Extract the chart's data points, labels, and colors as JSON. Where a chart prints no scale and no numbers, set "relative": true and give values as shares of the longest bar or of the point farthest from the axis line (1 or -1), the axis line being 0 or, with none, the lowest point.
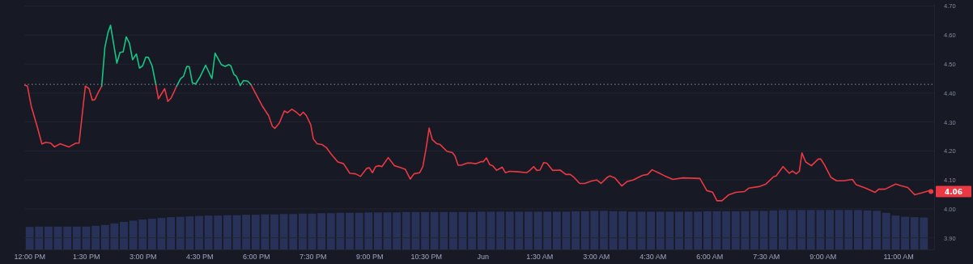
{
  "chart_data": [
    {
      "type": "line",
      "xlim": [
        "--05-31T11:52",
        "--06-01T11:57"
      ],
      "ylim": [
        3.86,
        4.71
      ],
      "xticks": [
        {
          "value": "--05-31T12:00",
          "label": "12:00 PM"
        },
        {
          "value": "--05-31T13:30",
          "label": "1:30 PM"
        },
        {
          "value": "--05-31T15:00",
          "label": "3:00 PM"
        },
        {
          "value": "--05-31T16:30",
          "label": "4:30 PM"
        },
        {
          "value": "--05-31T18:00",
          "label": "6:00 PM"
        },
        {
          "value": "--05-31T19:30",
          "label": "7:30 PM"
        },
        {
          "value": "--05-31T21:00",
          "label": "9:00 PM"
        },
        {
          "value": "--05-31T22:30",
          "label": "10:30 PM"
        },
        {
          "value": "--06-01T00:00",
          "label": "Jun"
        },
        {
          "value": "--06-01T01:30",
          "label": "1:30 AM"
        },
        {
          "value": "--06-01T03:00",
          "label": "3:00 AM"
        },
        {
          "value": "--06-01T04:30",
          "label": "4:30 AM"
        },
        {
          "value": "--06-01T06:00",
          "label": "6:00 AM"
        },
        {
          "value": "--06-01T07:30",
          "label": "7:30 AM"
        },
        {
          "value": "--06-01T09:00",
          "label": "9:00 AM"
        },
        {
          "value": "--06-01T11:00",
          "label": "11:00 AM"
        }
      ],
      "yticks": [
        {
          "value": 3.9,
          "label": "3.90"
        },
        {
          "value": 4.0,
          "label": "4.00"
        },
        {
          "value": 4.1,
          "label": "4.10"
        },
        {
          "value": 4.2,
          "label": "4.20"
        },
        {
          "value": 4.3,
          "label": "4.30"
        },
        {
          "value": 4.4,
          "label": "4.40"
        },
        {
          "value": 4.5,
          "label": "4.50"
        },
        {
          "value": 4.6,
          "label": "4.60"
        },
        {
          "value": 4.7,
          "label": "4.70"
        }
      ],
      "grid": "y",
      "marker": "none",
      "line_style": "solid",
      "ref_lines": [
        {
          "axis": "y",
          "value": 4.43,
          "line_style": "dotted",
          "color": "#8a8f9c"
        }
      ],
      "annotations": [
        {
          "text": "4.06",
          "x": "--06-01T11:52",
          "y": 4.06
        }
      ],
      "series": [
        {
          "color": "#ea3943",
          "x": [
            "--05-31T11:53",
            "--05-31T11:57",
            "--05-31T12:03",
            "--05-31T12:13",
            "--05-31T12:20",
            "--05-31T12:26",
            "--05-31T12:34",
            "--05-31T12:40",
            "--05-31T12:49",
            "--05-31T12:55",
            "--05-31T13:03",
            "--05-31T13:14",
            "--05-31T13:19",
            "--05-31T13:29",
            "--05-31T13:35",
            "--05-31T13:40",
            "--05-31T13:44",
            "--05-31T13:49",
            "--05-31T13:55",
            "--05-31T14:00",
            "--05-31T14:05",
            "--05-31T14:09",
            "--05-31T14:19",
            "--05-31T14:24",
            "--05-31T14:29",
            "--05-31T14:34",
            "--05-31T14:39",
            "--05-31T14:44",
            "--05-31T14:50",
            "--05-31T14:55",
            "--05-31T15:00",
            "--05-31T15:05",
            "--05-31T15:09",
            "--05-31T15:15",
            "--05-31T15:21",
            "--05-31T15:25",
            "--05-31T15:35",
            "--05-31T15:40",
            "--05-31T15:45",
            "--05-31T15:54",
            "--05-31T16:00",
            "--05-31T16:05",
            "--05-31T16:10",
            "--05-31T16:14",
            "--05-31T16:19",
            "--05-31T16:24",
            "--05-31T16:31",
            "--05-31T16:40",
            "--05-31T16:50",
            "--05-31T16:55",
            "--05-31T17:05",
            "--05-31T17:11",
            "--05-31T17:17",
            "--05-31T17:20",
            "--05-31T17:25",
            "--05-31T17:29",
            "--05-31T17:35",
            "--05-31T17:40",
            "--05-31T17:47",
            "--05-31T17:52",
            "--05-31T17:59",
            "--05-31T18:10",
            "--05-31T18:20",
            "--05-31T18:26",
            "--05-31T18:30",
            "--05-31T18:37",
            "--05-31T18:45",
            "--05-31T18:50",
            "--05-31T18:57",
            "--05-31T19:04",
            "--05-31T19:10",
            "--05-31T19:15",
            "--05-31T19:20",
            "--05-31T19:27",
            "--05-31T19:31",
            "--05-31T19:37",
            "--05-31T19:45",
            "--05-31T19:52",
            "--05-31T19:58",
            "--05-31T20:10",
            "--05-31T20:19",
            "--05-31T20:29",
            "--05-31T20:38",
            "--05-31T20:46",
            "--05-31T20:56",
            "--05-31T21:00",
            "--05-31T21:05",
            "--05-31T21:10",
            "--05-31T21:15",
            "--05-31T21:20",
            "--05-31T21:30",
            "--05-31T21:40",
            "--05-31T21:48",
            "--05-31T21:57",
            "--05-31T22:05",
            "--05-31T22:11",
            "--05-31T22:20",
            "--05-31T22:25",
            "--05-31T22:30",
            "--05-31T22:35",
            "--05-31T22:40",
            "--05-31T22:47",
            "--05-31T22:52",
            "--05-31T23:03",
            "--05-31T23:12",
            "--05-31T23:16",
            "--05-31T23:21",
            "--05-31T23:26",
            "--05-31T23:35",
            "--05-31T23:43",
            "--05-31T23:49",
            "--05-31T23:57",
            "--06-01T00:01",
            "--06-01T00:06",
            "--06-01T00:11",
            "--06-01T00:16",
            "--06-01T00:22",
            "--06-01T00:31",
            "--06-01T00:36",
            "--06-01T00:43",
            "--06-01T00:56",
            "--06-01T01:10",
            "--06-01T01:15",
            "--06-01T01:21",
            "--06-01T01:26",
            "--06-01T01:31",
            "--06-01T01:37",
            "--06-01T01:42",
            "--06-01T01:51",
            "--06-01T02:03",
            "--06-01T02:12",
            "--06-01T02:19",
            "--06-01T02:25",
            "--06-01T02:34",
            "--06-01T02:42",
            "--06-01T02:53",
            "--06-01T03:01",
            "--06-01T03:08",
            "--06-01T03:18",
            "--06-01T03:22",
            "--06-01T03:30",
            "--06-01T03:41",
            "--06-01T03:49",
            "--06-01T03:59",
            "--06-01T04:14",
            "--06-01T04:22",
            "--06-01T04:29",
            "--06-01T04:39",
            "--06-01T04:49",
            "--06-01T05:02",
            "--06-01T05:18",
            "--06-01T05:45",
            "--06-01T05:56",
            "--06-01T06:05",
            "--06-01T06:12",
            "--06-01T06:20",
            "--06-01T06:31",
            "--06-01T06:42",
            "--06-01T06:56",
            "--06-01T07:03",
            "--06-01T07:19",
            "--06-01T07:30",
            "--06-01T07:42",
            "--06-01T07:46",
            "--06-01T07:57",
            "--06-01T08:07",
            "--06-01T08:12",
            "--06-01T08:18",
            "--06-01T08:23",
            "--06-01T08:27",
            "--06-01T08:33",
            "--06-01T08:42",
            "--06-01T08:53",
            "--06-01T08:57",
            "--06-01T09:03",
            "--06-01T09:13",
            "--06-01T09:22",
            "--06-01T09:33",
            "--06-01T09:47",
            "--06-01T09:53",
            "--06-01T10:08",
            "--06-01T10:23",
            "--06-01T10:29",
            "--06-01T10:39",
            "--06-01T10:56",
            "--06-01T11:04",
            "--06-01T11:15",
            "--06-01T11:26",
            "--06-01T11:38",
            "--06-01T11:52"
          ],
          "values": [
            4.427,
            4.424,
            4.355,
            4.28,
            4.224,
            4.23,
            4.227,
            4.214,
            4.225,
            4.22,
            4.214,
            4.227,
            4.227,
            4.424,
            4.415,
            4.375,
            4.377,
            4.4,
            4.424,
            null,
            null,
            null,
            null,
            null,
            null,
            null,
            null,
            null,
            null,
            null,
            null,
            null,
            null,
            null,
            4.429,
            4.38,
            4.415,
            4.371,
            4.382,
            4.424,
            null,
            null,
            null,
            null,
            null,
            null,
            null,
            null,
            null,
            null,
            null,
            null,
            null,
            null,
            null,
            null,
            null,
            null,
            null,
            4.429,
            4.4,
            4.355,
            4.322,
            4.285,
            4.278,
            4.296,
            4.338,
            4.332,
            4.344,
            4.334,
            4.322,
            4.334,
            4.322,
            4.29,
            4.242,
            4.225,
            4.222,
            4.211,
            4.193,
            4.162,
            4.156,
            4.123,
            4.121,
            4.112,
            4.14,
            4.142,
            4.125,
            4.146,
            4.149,
            4.146,
            4.177,
            4.149,
            4.144,
            4.137,
            4.103,
            4.121,
            4.125,
            4.146,
            4.207,
            4.279,
            4.239,
            4.225,
            4.223,
            4.199,
            4.194,
            4.183,
            4.151,
            4.151,
            4.158,
            4.158,
            4.156,
            4.163,
            4.163,
            4.176,
            4.153,
            4.149,
            4.133,
            4.144,
            4.125,
            4.13,
            4.128,
            4.125,
            4.133,
            4.146,
            4.133,
            4.134,
            4.16,
            4.158,
            4.133,
            4.134,
            4.119,
            4.119,
            4.109,
            4.088,
            4.088,
            4.096,
            4.1,
            4.088,
            4.109,
            4.114,
            4.107,
            4.079,
            4.094,
            4.1,
            4.116,
            4.119,
            4.135,
            4.125,
            4.114,
            4.102,
            4.107,
            4.105,
            4.063,
            4.058,
            4.028,
            4.028,
            4.049,
            4.057,
            4.06,
            4.072,
            4.077,
            4.086,
            4.111,
            4.114,
            4.146,
            4.123,
            4.131,
            4.121,
            4.13,
            4.193,
            4.162,
            4.149,
            4.172,
            4.172,
            4.151,
            4.109,
            4.097,
            4.097,
            4.102,
            4.084,
            4.072,
            4.057,
            4.068,
            4.068,
            4.086,
            4.08,
            4.074,
            4.049,
            4.056,
            4.065
          ]
        },
        {
          "color": "#16c784",
          "x": [
            "--05-31T13:55",
            "--05-31T14:00",
            "--05-31T14:05",
            "--05-31T14:09",
            "--05-31T14:19",
            "--05-31T14:24",
            "--05-31T14:29",
            "--05-31T14:34",
            "--05-31T14:39",
            "--05-31T14:44",
            "--05-31T14:50",
            "--05-31T14:55",
            "--05-31T15:00",
            "--05-31T15:05",
            "--05-31T15:09",
            "--05-31T15:15",
            "--05-31T15:21",
            "--05-31T15:36",
            "--05-31T15:54",
            "--05-31T16:00",
            "--05-31T16:05",
            "--05-31T16:10",
            "--05-31T16:14",
            "--05-31T16:19",
            "--05-31T16:24",
            "--05-31T16:31",
            "--05-31T16:40",
            "--05-31T16:50",
            "--05-31T16:55",
            "--05-31T17:05",
            "--05-31T17:11",
            "--05-31T17:17",
            "--05-31T17:20",
            "--05-31T17:25",
            "--05-31T17:29",
            "--05-31T17:35",
            "--05-31T17:40",
            "--05-31T17:47",
            "--05-31T17:52"
          ],
          "values": [
            4.424,
            4.558,
            4.609,
            4.634,
            4.503,
            4.54,
            4.542,
            4.594,
            4.572,
            4.515,
            4.535,
            4.486,
            4.494,
            4.524,
            4.523,
            4.494,
            4.429,
            null,
            4.424,
            4.449,
            4.458,
            4.492,
            4.491,
            4.435,
            4.431,
            4.455,
            4.496,
            4.45,
            4.538,
            4.498,
            4.492,
            4.498,
            4.494,
            4.464,
            4.457,
            4.426,
            4.443,
            4.441,
            4.429
          ]
        }
      ]
    },
    {
      "type": "bar",
      "relative": true,
      "tick_labels": false,
      "color": "#283259",
      "categories": [
        null,
        null,
        null,
        null,
        null,
        null,
        null,
        null,
        null,
        null,
        null,
        null,
        null,
        null,
        null,
        null,
        null,
        null,
        null,
        null,
        null,
        null,
        null,
        null,
        null,
        null,
        null,
        null,
        null,
        null,
        null,
        null,
        null,
        null,
        null,
        null,
        null,
        null,
        null,
        null,
        null,
        null,
        null,
        null,
        null,
        null,
        null,
        null,
        null,
        null,
        null,
        null,
        null,
        null,
        null,
        null,
        null,
        null,
        null,
        null,
        null,
        null,
        null,
        null,
        null,
        null,
        null,
        null,
        null,
        null,
        null,
        null,
        null,
        null,
        null,
        null,
        null,
        null,
        null,
        null,
        null,
        null,
        null,
        null,
        null,
        null,
        null,
        null,
        null,
        null,
        null,
        null,
        null,
        null,
        null,
        null
      ],
      "values": [
        0.57,
        0.58,
        0.58,
        0.58,
        0.58,
        0.58,
        0.58,
        0.6,
        0.62,
        0.66,
        0.7,
        0.73,
        0.76,
        0.78,
        0.8,
        0.82,
        0.83,
        0.84,
        0.85,
        0.86,
        0.86,
        0.87,
        0.87,
        0.88,
        0.88,
        0.89,
        0.89,
        0.9,
        0.9,
        0.91,
        0.91,
        0.92,
        0.92,
        0.93,
        0.93,
        0.93,
        0.94,
        0.94,
        0.94,
        0.94,
        0.95,
        0.95,
        0.95,
        0.95,
        0.95,
        0.95,
        0.95,
        0.95,
        0.96,
        0.96,
        0.96,
        0.96,
        0.96,
        0.96,
        0.96,
        0.96,
        0.96,
        0.96,
        0.97,
        0.97,
        0.98,
        0.98,
        0.97,
        0.97,
        0.96,
        0.96,
        0.96,
        0.96,
        0.96,
        0.96,
        0.96,
        0.96,
        0.97,
        0.97,
        0.97,
        0.97,
        0.97,
        0.98,
        0.98,
        0.99,
        1.0,
        1.0,
        1.0,
        1.0,
        1.0,
        1.0,
        1.0,
        1.0,
        1.0,
        0.99,
        0.98,
        0.93,
        0.86,
        0.83,
        0.82,
        0.81
      ]
    }
  ]
}
